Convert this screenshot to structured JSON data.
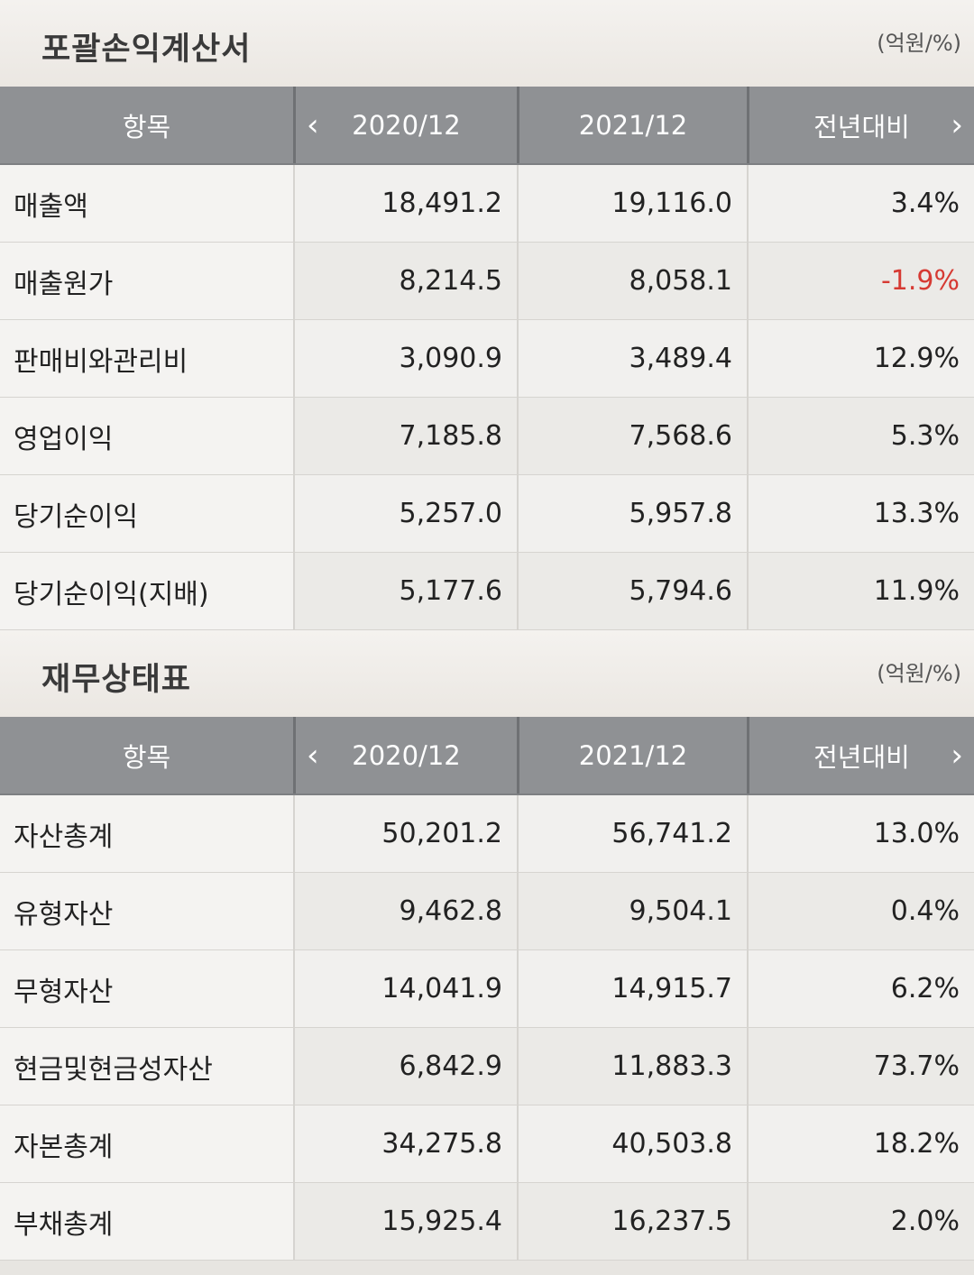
{
  "income": {
    "title": "포괄손익계산서",
    "unit": "(억원/%)",
    "header": {
      "item": "항목",
      "col1": "2020/12",
      "col2": "2021/12",
      "col3": "전년대비"
    },
    "rows": [
      {
        "label": "매출액",
        "v1": "18,491.2",
        "v2": "19,116.0",
        "yoy": "3.4%"
      },
      {
        "label": "매출원가",
        "v1": "8,214.5",
        "v2": "8,058.1",
        "yoy": "-1.9%"
      },
      {
        "label": "판매비와관리비",
        "v1": "3,090.9",
        "v2": "3,489.4",
        "yoy": "12.9%"
      },
      {
        "label": "영업이익",
        "v1": "7,185.8",
        "v2": "7,568.6",
        "yoy": "5.3%"
      },
      {
        "label": "당기순이익",
        "v1": "5,257.0",
        "v2": "5,957.8",
        "yoy": "13.3%"
      },
      {
        "label": "당기순이익(지배)",
        "v1": "5,177.6",
        "v2": "5,794.6",
        "yoy": "11.9%"
      }
    ]
  },
  "balance": {
    "title": "재무상태표",
    "unit": "(억원/%)",
    "header": {
      "item": "항목",
      "col1": "2020/12",
      "col2": "2021/12",
      "col3": "전년대비"
    },
    "rows": [
      {
        "label": "자산총계",
        "v1": "50,201.2",
        "v2": "56,741.2",
        "yoy": "13.0%"
      },
      {
        "label": "유형자산",
        "v1": "9,462.8",
        "v2": "9,504.1",
        "yoy": "0.4%"
      },
      {
        "label": "무형자산",
        "v1": "14,041.9",
        "v2": "14,915.7",
        "yoy": "6.2%"
      },
      {
        "label": "현금및현금성자산",
        "v1": "6,842.9",
        "v2": "11,883.3",
        "yoy": "73.7%"
      },
      {
        "label": "자본총계",
        "v1": "34,275.8",
        "v2": "40,503.8",
        "yoy": "18.2%"
      },
      {
        "label": "부채총계",
        "v1": "15,925.4",
        "v2": "16,237.5",
        "yoy": "2.0%"
      }
    ]
  },
  "icons": {
    "prev": "chevron-left-icon",
    "next": "chevron-right-icon"
  },
  "colors": {
    "negative": "#d63a33",
    "header_bg": "#8f9194"
  }
}
